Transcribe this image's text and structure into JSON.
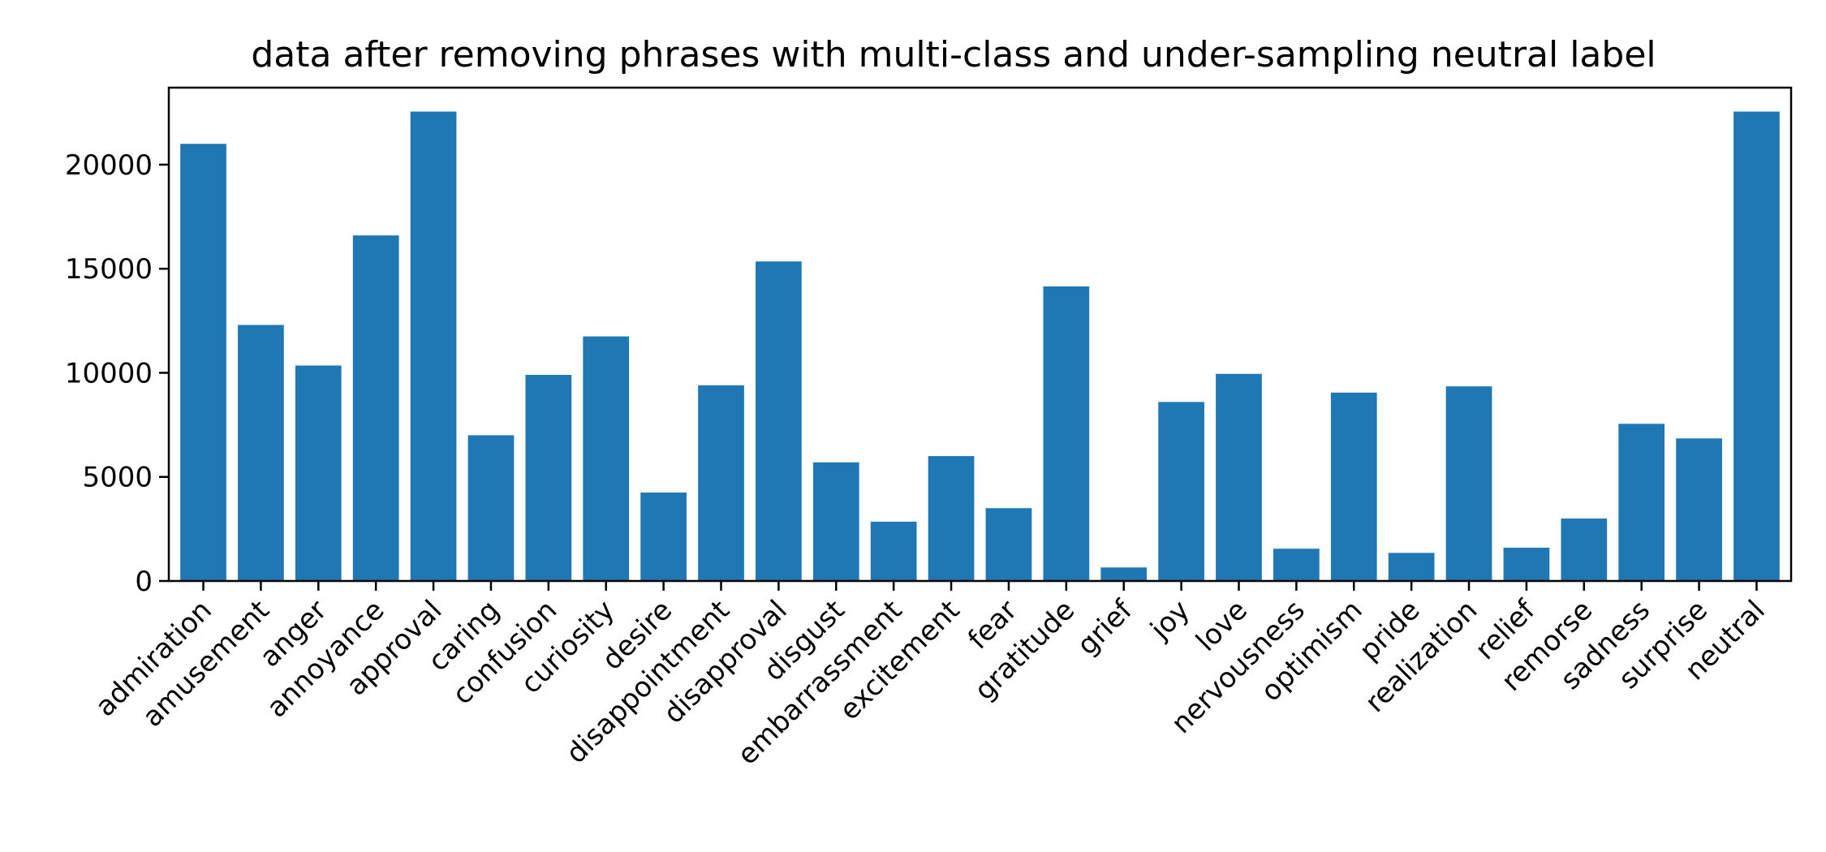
{
  "chart_data": {
    "type": "bar",
    "title": "data after removing phrases with multi-class and under-sampling neutral label",
    "xlabel": "",
    "ylabel": "",
    "categories": [
      "admiration",
      "amusement",
      "anger",
      "annoyance",
      "approval",
      "caring",
      "confusion",
      "curiosity",
      "desire",
      "disappointment",
      "disapproval",
      "disgust",
      "embarrassment",
      "excitement",
      "fear",
      "gratitude",
      "grief",
      "joy",
      "love",
      "nervousness",
      "optimism",
      "pride",
      "realization",
      "relief",
      "remorse",
      "sadness",
      "surprise",
      "neutral"
    ],
    "values": [
      21000,
      12300,
      10350,
      16600,
      22550,
      7000,
      9900,
      11750,
      4250,
      9400,
      15350,
      5700,
      2850,
      6000,
      3500,
      14150,
      650,
      8600,
      9950,
      1550,
      9050,
      1350,
      9350,
      1600,
      3000,
      7550,
      6850,
      22550
    ],
    "ylim": [
      0,
      23700
    ],
    "yticks": [
      0,
      5000,
      10000,
      15000,
      20000
    ],
    "color": "#1f77b4",
    "grid": false,
    "legend": "none"
  }
}
